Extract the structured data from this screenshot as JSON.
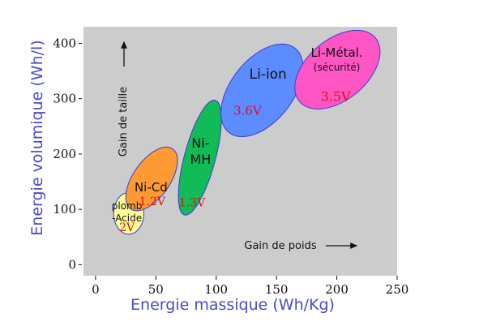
{
  "chart_data": {
    "type": "scatter",
    "xlabel": "Energie massique  (Wh/Kg)",
    "ylabel": "Energie volumique  (Wh/l)",
    "xlim": [
      -10,
      250
    ],
    "ylim": [
      -20,
      430
    ],
    "x_ticks": [
      "0",
      "50",
      "100",
      "150",
      "200",
      "250"
    ],
    "y_ticks": [
      "0",
      "100",
      "200",
      "300",
      "400"
    ],
    "plot_background": "#cccccc",
    "annotations": {
      "size_gain": "Gain de taille",
      "weight_gain": "Gain de poids"
    },
    "series": [
      {
        "name": "plomb-Acide",
        "lines": [
          "plomb",
          "-Acide"
        ],
        "voltage": "2V",
        "x_range": [
          15,
          40
        ],
        "y_range": [
          55,
          130
        ],
        "color": "#ffff99",
        "label_x": 26,
        "label_y": 95,
        "volt_x": 26,
        "volt_y": 68
      },
      {
        "name": "Ni-Cd",
        "lines": [
          "Ni-Cd"
        ],
        "voltage": "1.2V",
        "x_range": [
          27,
          66
        ],
        "y_range": [
          95,
          215
        ],
        "color": "#ff9933",
        "label_x": 46,
        "label_y": 140,
        "volt_x": 47,
        "volt_y": 115
      },
      {
        "name": "Ni-MH",
        "lines": [
          "Ni-",
          "MH"
        ],
        "voltage": "1.3V",
        "x_range": [
          70,
          103
        ],
        "y_range": [
          80,
          307
        ],
        "color": "#11bb55",
        "label_x": 87,
        "label_y": 205,
        "volt_x": 80,
        "volt_y": 113
      },
      {
        "name": "Li-ion",
        "lines": [
          "Li-ion"
        ],
        "voltage": "3.6V",
        "x_range": [
          105,
          171
        ],
        "y_range": [
          235,
          395
        ],
        "color": "#5c8cff",
        "label_x": 143,
        "label_y": 345,
        "volt_x": 126,
        "volt_y": 278
      },
      {
        "name": "Li-Métal",
        "lines": [
          "Li-Métal.",
          "(sécurité)"
        ],
        "voltage": "3.5V",
        "x_range": [
          175,
          226
        ],
        "y_range": [
          270,
          435
        ],
        "color": "#ff55c4",
        "label_x": 200,
        "label_y": 370,
        "volt_x": 199,
        "volt_y": 303
      }
    ]
  }
}
